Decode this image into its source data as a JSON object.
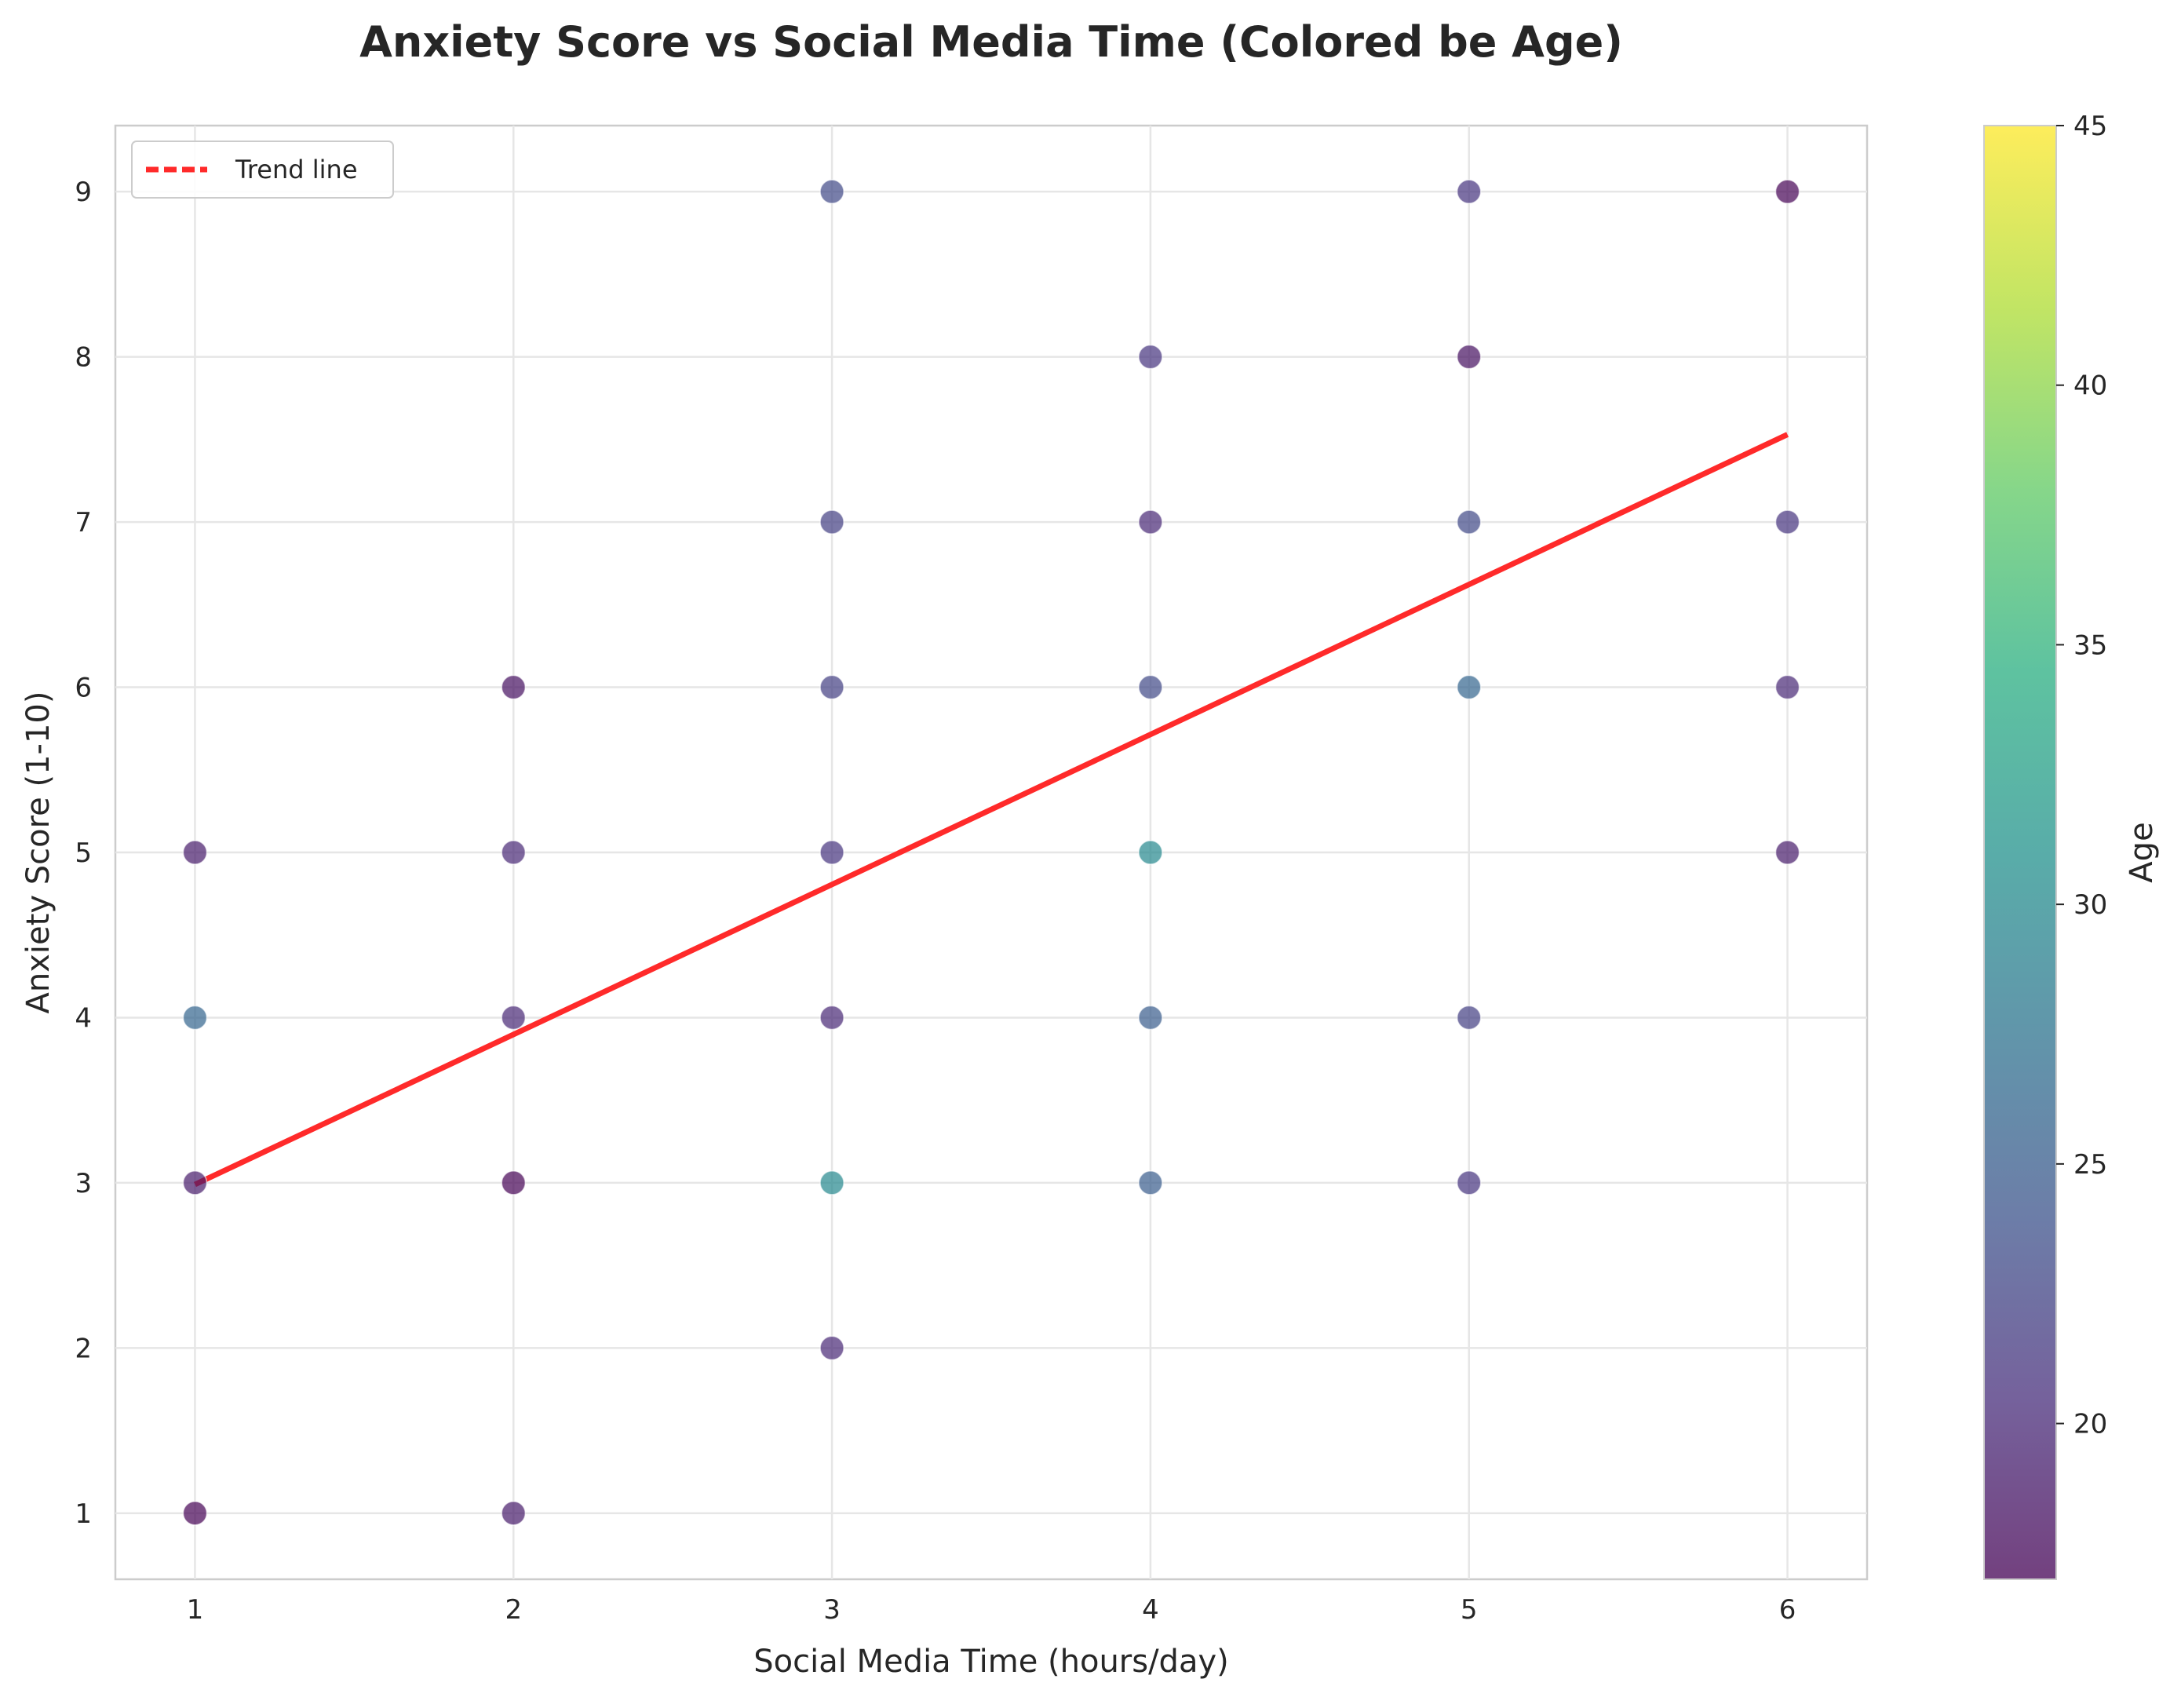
{
  "chart_data": {
    "type": "scatter",
    "title": "Anxiety Score vs Social Media Time (Colored be Age)",
    "xlabel": "Social Media Time (hours/day)",
    "ylabel": "Anxiety Score (1-10)",
    "xlim": [
      0.75,
      6.25
    ],
    "ylim": [
      0.6,
      9.4
    ],
    "xticks": [
      "1",
      "2",
      "3",
      "4",
      "5",
      "6"
    ],
    "yticks": [
      "1",
      "2",
      "3",
      "4",
      "5",
      "6",
      "7",
      "8",
      "9"
    ],
    "grid": true,
    "legend": {
      "placement": "top-left",
      "entries": [
        {
          "label": "Trend line",
          "color": "#ff0000",
          "style": "dashed"
        }
      ]
    },
    "trend_line": {
      "x": [
        1,
        6
      ],
      "y": [
        2.99,
        7.53
      ],
      "color": "#ff2a2a"
    },
    "colorbar": {
      "label": "Age",
      "colormap": "viridis",
      "range": [
        17,
        45
      ],
      "ticks": [
        "20",
        "25",
        "30",
        "35",
        "40",
        "45"
      ]
    },
    "points": [
      {
        "x": 1,
        "y": 1,
        "age": 17
      },
      {
        "x": 1,
        "y": 3,
        "age": 19
      },
      {
        "x": 1,
        "y": 4,
        "age": 26
      },
      {
        "x": 1,
        "y": 5,
        "age": 19
      },
      {
        "x": 2,
        "y": 1,
        "age": 19
      },
      {
        "x": 2,
        "y": 3,
        "age": 17
      },
      {
        "x": 2,
        "y": 4,
        "age": 20
      },
      {
        "x": 2,
        "y": 5,
        "age": 20
      },
      {
        "x": 2,
        "y": 6,
        "age": 18
      },
      {
        "x": 3,
        "y": 2,
        "age": 20
      },
      {
        "x": 3,
        "y": 3,
        "age": 30
      },
      {
        "x": 3,
        "y": 4,
        "age": 20
      },
      {
        "x": 3,
        "y": 5,
        "age": 21
      },
      {
        "x": 3,
        "y": 6,
        "age": 22
      },
      {
        "x": 3,
        "y": 7,
        "age": 22
      },
      {
        "x": 3,
        "y": 9,
        "age": 23
      },
      {
        "x": 4,
        "y": 3,
        "age": 25
      },
      {
        "x": 4,
        "y": 4,
        "age": 25
      },
      {
        "x": 4,
        "y": 5,
        "age": 30
      },
      {
        "x": 4,
        "y": 6,
        "age": 23
      },
      {
        "x": 4,
        "y": 7,
        "age": 20
      },
      {
        "x": 4,
        "y": 8,
        "age": 21
      },
      {
        "x": 5,
        "y": 3,
        "age": 21
      },
      {
        "x": 5,
        "y": 4,
        "age": 22
      },
      {
        "x": 5,
        "y": 6,
        "age": 26
      },
      {
        "x": 5,
        "y": 7,
        "age": 23
      },
      {
        "x": 5,
        "y": 8,
        "age": 18
      },
      {
        "x": 5,
        "y": 9,
        "age": 21
      },
      {
        "x": 6,
        "y": 5,
        "age": 19
      },
      {
        "x": 6,
        "y": 6,
        "age": 20
      },
      {
        "x": 6,
        "y": 7,
        "age": 21
      },
      {
        "x": 6,
        "y": 9,
        "age": 17
      }
    ]
  }
}
